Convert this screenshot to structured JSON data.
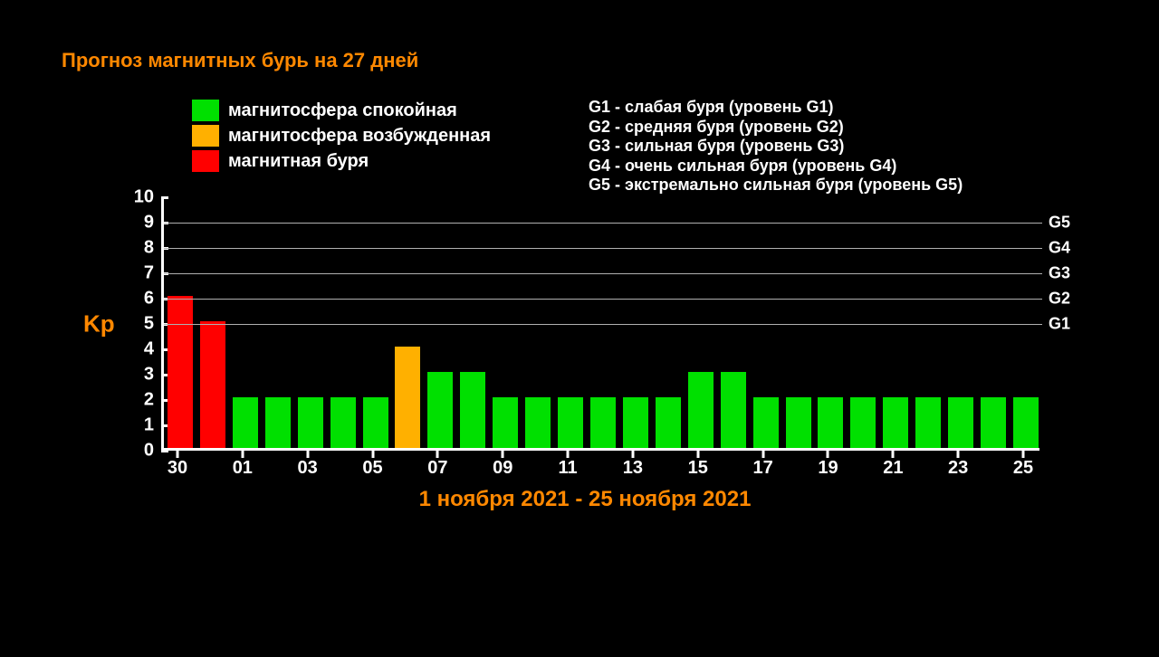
{
  "title": "Прогноз магнитных бурь на 27 дней",
  "colors": {
    "background": "#000000",
    "accent": "#ff8800",
    "text": "#ffffff",
    "axis": "#ffffff",
    "grid": "#b0b0b0",
    "calm": "#00e000",
    "excited": "#ffb000",
    "storm": "#ff0000"
  },
  "legend_color": [
    {
      "label": "магнитосфера спокойная",
      "color": "#00e000"
    },
    {
      "label": "магнитосфера возбужденная",
      "color": "#ffb000"
    },
    {
      "label": "магнитная буря",
      "color": "#ff0000"
    }
  ],
  "legend_g": [
    "G1 - слабая буря (уровень G1)",
    "G2 - средняя буря (уровень G2)",
    "G3 - сильная буря (уровень G3)",
    "G4 - очень сильная буря (уровень G4)",
    "G5 - экстремально сильная буря (уровень G5)"
  ],
  "chart": {
    "type": "bar",
    "yaxis": {
      "label": "Kp",
      "min": 0,
      "max": 10,
      "ticks": [
        0,
        1,
        2,
        3,
        4,
        5,
        6,
        7,
        8,
        9,
        10
      ]
    },
    "right_ticks": [
      {
        "label": "G1",
        "value": 5
      },
      {
        "label": "G2",
        "value": 6
      },
      {
        "label": "G3",
        "value": 7
      },
      {
        "label": "G4",
        "value": 8
      },
      {
        "label": "G5",
        "value": 9
      }
    ],
    "xaxis": {
      "label": "1 ноября 2021 - 25 ноября 2021",
      "tick_labels": [
        "30",
        "01",
        "03",
        "05",
        "07",
        "09",
        "11",
        "13",
        "15",
        "17",
        "19",
        "21",
        "23",
        "25"
      ],
      "tick_positions": [
        0,
        2,
        4,
        6,
        8,
        10,
        12,
        14,
        16,
        18,
        20,
        22,
        24,
        26
      ]
    },
    "bar_width_ratio": 0.78,
    "data": [
      {
        "day": "30",
        "value": 6,
        "color": "#ff0000"
      },
      {
        "day": "31",
        "value": 5,
        "color": "#ff0000"
      },
      {
        "day": "01",
        "value": 2,
        "color": "#00e000"
      },
      {
        "day": "02",
        "value": 2,
        "color": "#00e000"
      },
      {
        "day": "03",
        "value": 2,
        "color": "#00e000"
      },
      {
        "day": "04",
        "value": 2,
        "color": "#00e000"
      },
      {
        "day": "05",
        "value": 2,
        "color": "#00e000"
      },
      {
        "day": "06",
        "value": 4,
        "color": "#ffb000"
      },
      {
        "day": "07",
        "value": 3,
        "color": "#00e000"
      },
      {
        "day": "08",
        "value": 3,
        "color": "#00e000"
      },
      {
        "day": "09",
        "value": 2,
        "color": "#00e000"
      },
      {
        "day": "10",
        "value": 2,
        "color": "#00e000"
      },
      {
        "day": "11",
        "value": 2,
        "color": "#00e000"
      },
      {
        "day": "12",
        "value": 2,
        "color": "#00e000"
      },
      {
        "day": "13",
        "value": 2,
        "color": "#00e000"
      },
      {
        "day": "14",
        "value": 2,
        "color": "#00e000"
      },
      {
        "day": "15",
        "value": 3,
        "color": "#00e000"
      },
      {
        "day": "16",
        "value": 3,
        "color": "#00e000"
      },
      {
        "day": "17",
        "value": 2,
        "color": "#00e000"
      },
      {
        "day": "18",
        "value": 2,
        "color": "#00e000"
      },
      {
        "day": "19",
        "value": 2,
        "color": "#00e000"
      },
      {
        "day": "20",
        "value": 2,
        "color": "#00e000"
      },
      {
        "day": "21",
        "value": 2,
        "color": "#00e000"
      },
      {
        "day": "22",
        "value": 2,
        "color": "#00e000"
      },
      {
        "day": "23",
        "value": 2,
        "color": "#00e000"
      },
      {
        "day": "24",
        "value": 2,
        "color": "#00e000"
      },
      {
        "day": "25",
        "value": 2,
        "color": "#00e000"
      }
    ]
  }
}
